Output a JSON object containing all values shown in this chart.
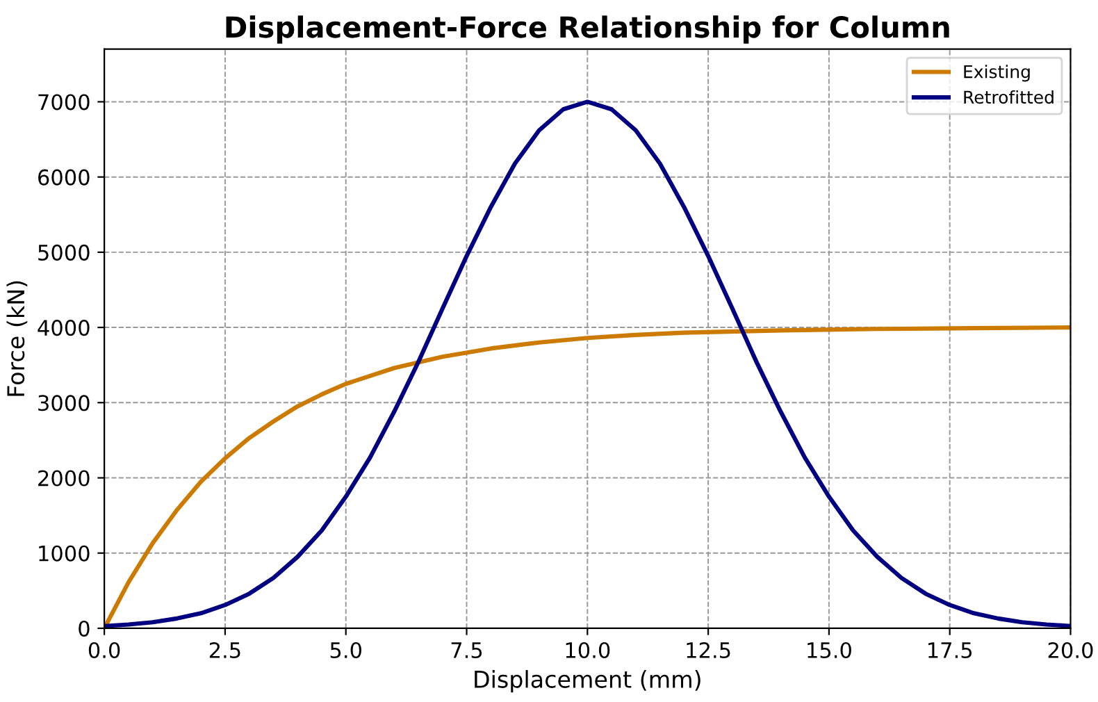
{
  "chart_data": {
    "type": "line",
    "title": "Displacement-Force Relationship for Column",
    "xlabel": "Displacement (mm)",
    "ylabel": "Force (kN)",
    "series": [
      {
        "name": "Existing",
        "color": "#cc7a00",
        "x": [
          0,
          0.5,
          1,
          1.5,
          2,
          2.5,
          3,
          3.5,
          4,
          4.5,
          5,
          6,
          7,
          8,
          9,
          10,
          11,
          12,
          14,
          16,
          18,
          20
        ],
        "values": [
          0,
          610,
          1130,
          1570,
          1950,
          2260,
          2530,
          2750,
          2950,
          3110,
          3250,
          3460,
          3610,
          3720,
          3800,
          3860,
          3900,
          3930,
          3960,
          3980,
          3990,
          4000
        ]
      },
      {
        "name": "Retrofitted",
        "color": "#000080",
        "x": [
          0,
          0.5,
          1,
          1.5,
          2,
          2.5,
          3,
          3.5,
          4,
          4.5,
          5,
          5.5,
          6,
          6.5,
          7,
          7.5,
          8,
          8.5,
          9,
          9.5,
          10,
          10.5,
          11,
          11.5,
          12,
          12.5,
          13,
          13.5,
          14,
          14.5,
          15,
          15.5,
          16,
          16.5,
          17,
          17.5,
          18,
          18.5,
          19,
          19.5,
          20
        ],
        "values": [
          30,
          50,
          80,
          130,
          200,
          310,
          460,
          670,
          950,
          1300,
          1750,
          2270,
          2880,
          3540,
          4250,
          4950,
          5600,
          6180,
          6620,
          6900,
          7000,
          6900,
          6620,
          6180,
          5600,
          4950,
          4250,
          3540,
          2880,
          2270,
          1750,
          1300,
          950,
          670,
          460,
          310,
          200,
          130,
          80,
          50,
          30
        ]
      }
    ],
    "xlim": [
      0,
      20
    ],
    "xticks": [
      {
        "value": 0,
        "label": "0.0"
      },
      2.5,
      {
        "value": 5,
        "label": "5.0"
      },
      7.5,
      {
        "value": 10,
        "label": "10.0"
      },
      12.5,
      {
        "value": 15,
        "label": "15.0"
      },
      17.5,
      {
        "value": 20,
        "label": "20.0"
      }
    ],
    "ylim": [
      0,
      7700
    ],
    "yticks": [
      0,
      1000,
      2000,
      3000,
      4000,
      5000,
      6000,
      7000
    ],
    "grid": true,
    "legend": "top right",
    "line_style": "solid",
    "marker": "none"
  }
}
